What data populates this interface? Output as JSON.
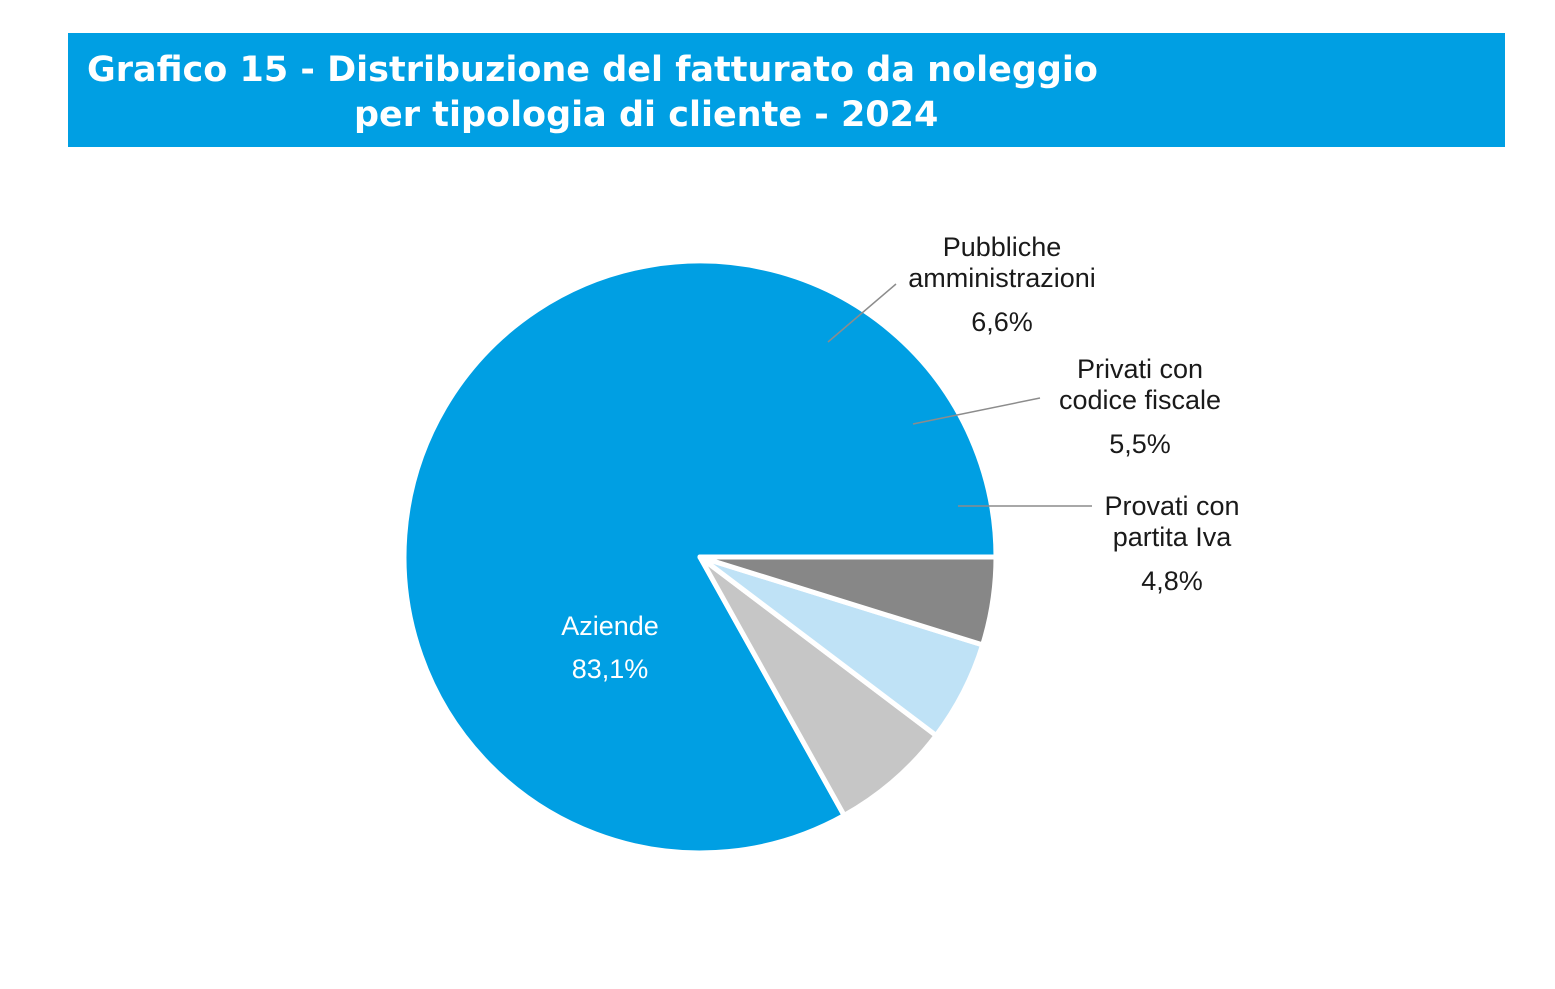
{
  "title": {
    "line1": "Grafico 15 - Distribuzione del fatturato da noleggio",
    "line2": "per tipologia di cliente - 2024",
    "background": "#009fe3"
  },
  "chart_data": {
    "type": "pie",
    "title": "Grafico 15 - Distribuzione del fatturato da noleggio per tipologia di cliente - 2024",
    "unit": "%",
    "slices": [
      {
        "label_lines": [
          "Aziende"
        ],
        "value": 83.1,
        "value_label": "83,1%",
        "color": "#009fe3",
        "label_color": "#ffffff"
      },
      {
        "label_lines": [
          "Pubbliche",
          "amministrazioni"
        ],
        "value": 6.6,
        "value_label": "6,6%",
        "color": "#c6c6c6",
        "label_color": "#1a1a1a"
      },
      {
        "label_lines": [
          "Privati con",
          "codice fiscale"
        ],
        "value": 5.5,
        "value_label": "5,5%",
        "color": "#bfe2f6",
        "label_color": "#1a1a1a"
      },
      {
        "label_lines": [
          "Provati con",
          "partita Iva"
        ],
        "value": 4.8,
        "value_label": "4,8%",
        "color": "#878787",
        "label_color": "#1a1a1a"
      }
    ],
    "start_direction": "east",
    "direction": "counterclockwise",
    "leader_line_color": "#8c8c8c"
  }
}
